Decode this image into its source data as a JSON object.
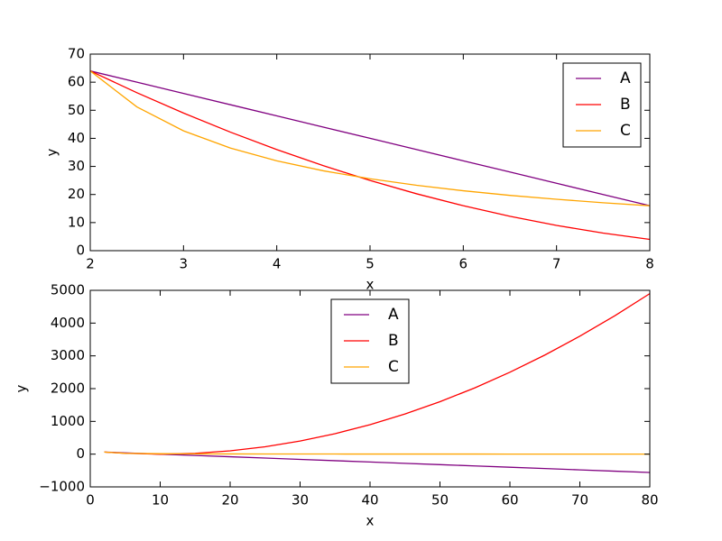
{
  "chart_data": [
    {
      "type": "line",
      "xlabel": "x",
      "ylabel": "y",
      "x": [
        2,
        2.5,
        3,
        3.5,
        4,
        4.5,
        5,
        5.5,
        6,
        6.5,
        7,
        7.5,
        8
      ],
      "series": [
        {
          "name": "A",
          "color": "#800080",
          "values": [
            64,
            60,
            56,
            52,
            48,
            44,
            40,
            36,
            32,
            28,
            24,
            20,
            16
          ]
        },
        {
          "name": "B",
          "color": "#ff0000",
          "values": [
            64,
            56.25,
            49,
            42.25,
            36,
            30.25,
            25,
            20.25,
            16,
            12.25,
            9,
            6.25,
            4
          ]
        },
        {
          "name": "C",
          "color": "#ffa500",
          "values": [
            64,
            51.2,
            42.67,
            36.57,
            32,
            28.44,
            25.6,
            23.27,
            21.33,
            19.69,
            18.29,
            17.07,
            16
          ]
        }
      ],
      "xlim": [
        2,
        8
      ],
      "ylim": [
        0,
        70
      ],
      "xticks": [
        2,
        3,
        4,
        5,
        6,
        7,
        8
      ],
      "yticks": [
        0,
        10,
        20,
        30,
        40,
        50,
        60,
        70
      ],
      "legend": "upper right"
    },
    {
      "type": "line",
      "xlabel": "x",
      "ylabel": "y",
      "x": [
        2,
        5,
        10,
        15,
        20,
        25,
        30,
        35,
        40,
        45,
        50,
        55,
        60,
        65,
        70,
        75,
        80
      ],
      "series": [
        {
          "name": "A",
          "color": "#800080",
          "values": [
            64,
            40,
            0,
            -40,
            -80,
            -120,
            -160,
            -200,
            -240,
            -280,
            -320,
            -360,
            -400,
            -440,
            -480,
            -520,
            -560
          ]
        },
        {
          "name": "B",
          "color": "#ff0000",
          "values": [
            64,
            25,
            0,
            25,
            100,
            225,
            400,
            625,
            900,
            1225,
            1600,
            2025,
            2500,
            3025,
            3600,
            4225,
            4900
          ]
        },
        {
          "name": "C",
          "color": "#ffa500",
          "values": [
            64,
            25.6,
            12.8,
            8.53,
            6.4,
            5.12,
            4.27,
            3.66,
            3.2,
            2.84,
            2.56,
            2.33,
            2.13,
            1.97,
            1.83,
            1.71,
            1.6
          ]
        }
      ],
      "xlim": [
        0,
        80
      ],
      "ylim": [
        -1000,
        5000
      ],
      "xticks": [
        0,
        10,
        20,
        30,
        40,
        50,
        60,
        70,
        80
      ],
      "yticks": [
        {
          "value": -1000,
          "label": "−1000"
        },
        0,
        1000,
        2000,
        3000,
        4000,
        5000
      ],
      "legend": "upper center"
    }
  ]
}
